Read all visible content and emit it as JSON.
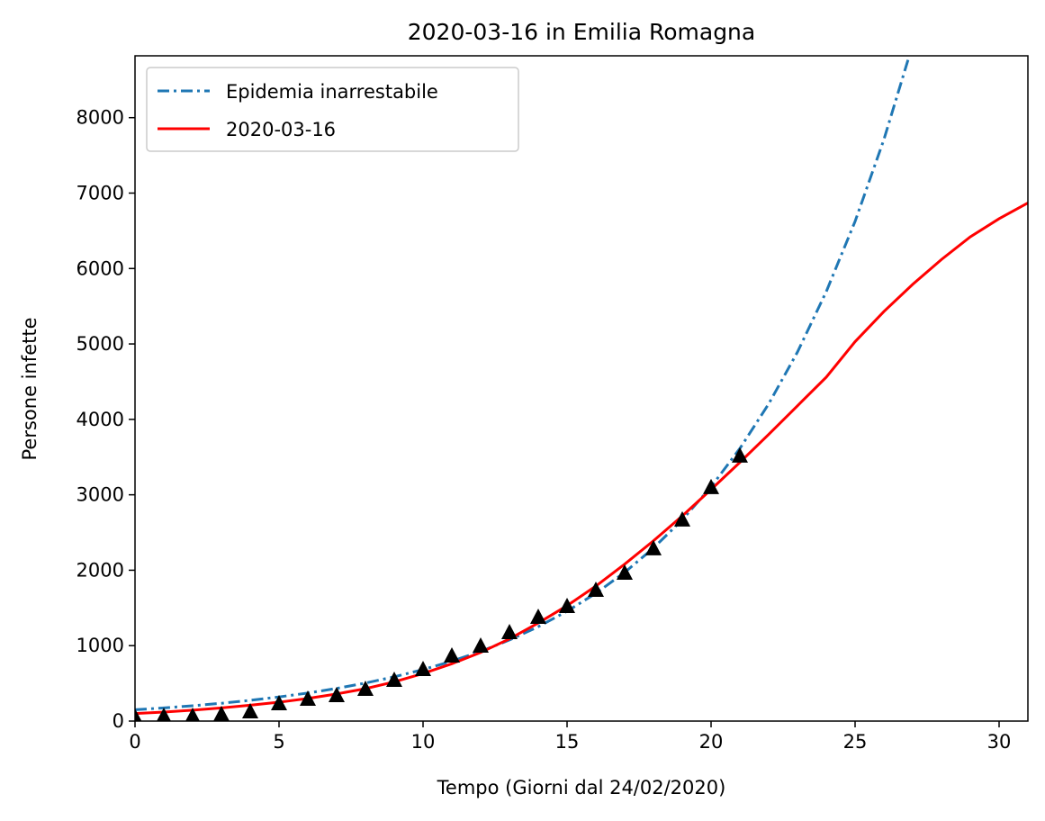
{
  "chart_data": {
    "type": "line",
    "title": "2020-03-16 in Emilia Romagna",
    "x_label": "Tempo (Giorni dal 24/02/2020)",
    "y_label": "Persone infette",
    "xlim": [
      0,
      31
    ],
    "ylim": [
      0,
      8820
    ],
    "xticks": [
      0,
      5,
      10,
      15,
      20,
      25,
      30
    ],
    "yticks": [
      0,
      1000,
      2000,
      3000,
      4000,
      5000,
      6000,
      7000,
      8000
    ],
    "legend": "upper left",
    "series": [
      {
        "name": "Epidemia inarrestabile",
        "color": "#1f77b4",
        "style": "dashdot",
        "x": [
          0,
          1,
          2,
          3,
          4,
          5,
          6,
          7,
          8,
          9,
          10,
          11,
          12,
          13,
          14,
          15,
          16,
          17,
          18,
          19,
          20,
          21,
          22,
          23,
          24,
          25,
          26,
          27
        ],
        "values": [
          150,
          175,
          203,
          236,
          275,
          320,
          372,
          433,
          504,
          587,
          683,
          794,
          924,
          1075,
          1251,
          1456,
          1694,
          1971,
          2294,
          2669,
          3106,
          3614,
          4205,
          4893,
          5694,
          6625,
          7709,
          8970
        ]
      },
      {
        "name": "2020-03-16",
        "color": "#ff0000",
        "style": "solid",
        "x": [
          0,
          1,
          2,
          3,
          4,
          5,
          6,
          7,
          8,
          9,
          10,
          11,
          12,
          13,
          14,
          15,
          16,
          17,
          18,
          19,
          20,
          21,
          22,
          23,
          24,
          25,
          26,
          27,
          28,
          29,
          30,
          31
        ],
        "values": [
          100,
          120,
          145,
          175,
          210,
          250,
          300,
          360,
          430,
          520,
          630,
          760,
          910,
          1090,
          1300,
          1530,
          1790,
          2080,
          2390,
          2720,
          3070,
          3430,
          3800,
          4180,
          4560,
          5030,
          5430,
          5790,
          6120,
          6420,
          6660,
          6870
        ]
      },
      {
        "color": "#000000",
        "style": "markers",
        "x": [
          0,
          1,
          2,
          3,
          4,
          5,
          6,
          7,
          8,
          9,
          10,
          11,
          12,
          13,
          14,
          15,
          16,
          17,
          18,
          19,
          20,
          21
        ],
        "values": [
          48,
          60,
          60,
          84,
          120,
          227,
          287,
          334,
          418,
          537,
          681,
          860,
          991,
          1170,
          1373,
          1516,
          1731,
          1958,
          2281,
          2663,
          3093,
          3510
        ]
      }
    ]
  }
}
